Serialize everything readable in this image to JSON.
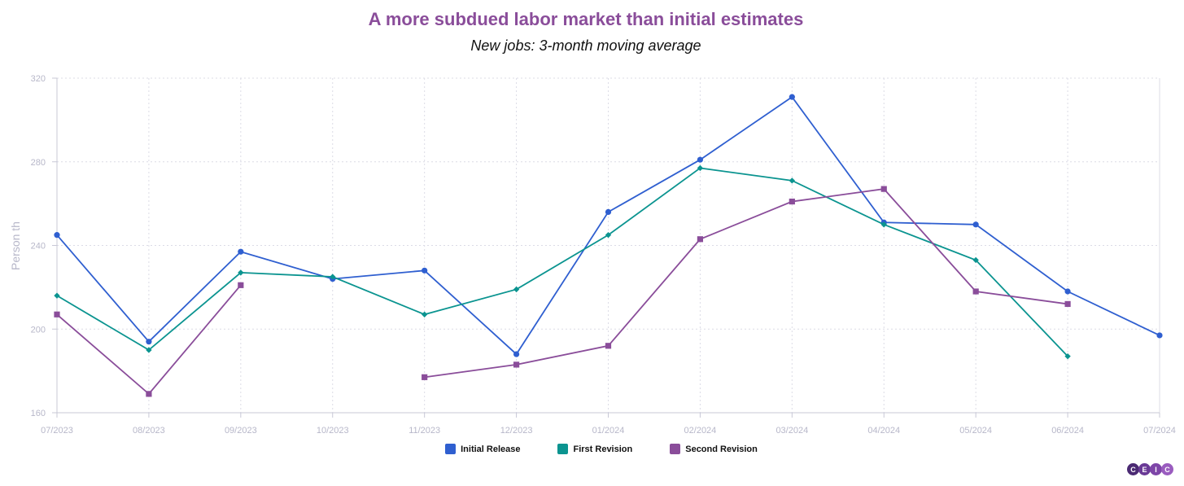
{
  "chart_data": {
    "type": "line",
    "title": "A more subdued labor market than initial estimates",
    "subtitle": "New jobs: 3-month moving average",
    "xlabel": "",
    "ylabel": "Person th",
    "ylim": [
      160,
      320
    ],
    "yticks": [
      160,
      200,
      240,
      280,
      320
    ],
    "categories": [
      "07/2023",
      "08/2023",
      "09/2023",
      "10/2023",
      "11/2023",
      "12/2023",
      "01/2024",
      "02/2024",
      "03/2024",
      "04/2024",
      "05/2024",
      "06/2024",
      "07/2024"
    ],
    "grid": true,
    "legend_position": "bottom-center",
    "series": [
      {
        "name": "Initial Release",
        "color": "#2f5fd0",
        "marker": "circle",
        "values": [
          245,
          194,
          237,
          224,
          228,
          188,
          256,
          281,
          311,
          251,
          250,
          218,
          197
        ]
      },
      {
        "name": "First Revision",
        "color": "#0b9490",
        "marker": "diamond",
        "values": [
          216,
          190,
          227,
          225,
          207,
          219,
          245,
          277,
          271,
          250,
          233,
          187,
          null
        ]
      },
      {
        "name": "Second Revision",
        "color": "#8a4d9a",
        "marker": "square",
        "values": [
          207,
          169,
          221,
          null,
          177,
          183,
          192,
          243,
          261,
          267,
          218,
          212,
          null
        ]
      }
    ]
  },
  "logo": {
    "letters": [
      "C",
      "E",
      "I",
      "C"
    ],
    "colors": [
      "#4b2a73",
      "#6a3a96",
      "#7e46a8",
      "#9a5cbf"
    ]
  }
}
